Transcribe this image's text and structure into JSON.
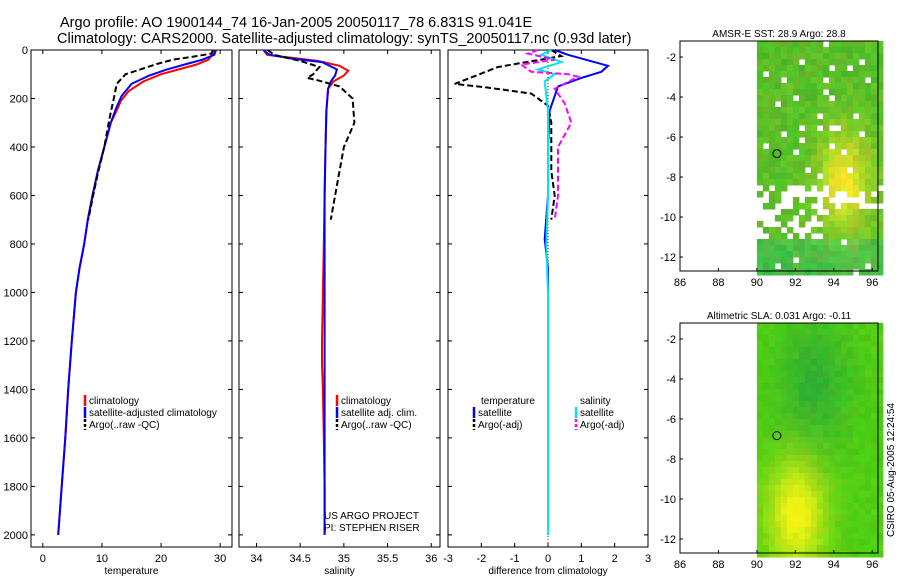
{
  "header": {
    "title_line1": "Argo profile: AO 1900144_74 16-Jan-2005 20050117_78 6.831S 91.041E",
    "title_line2": "Climatology: CARS2000. Satellite-adjusted climatology: synTS_20050117.nc (0.93d later)"
  },
  "colors": {
    "climatology": "#ff0000",
    "satellite": "#0000ff",
    "argo": "#000000",
    "satellite_salinity": "#00e5ee",
    "argo_salinity": "#ff00ff",
    "map_land_missing": "#ffffff"
  },
  "side_label": "CSIRO 05-Aug-2005 12:24:54",
  "chart_data": [
    {
      "id": "temperature",
      "type": "line",
      "xlabel": "temperature",
      "ylabel": "",
      "xlim": [
        -2,
        32
      ],
      "ylim": [
        2050,
        0
      ],
      "xticks": [
        0,
        10,
        20,
        30
      ],
      "yticks": [
        0,
        200,
        400,
        600,
        800,
        1000,
        1200,
        1400,
        1600,
        1800,
        2000
      ],
      "legend": {
        "placement": "lower-right",
        "entries": [
          "climatology",
          "satellite-adjusted climatology",
          "Argo(..raw -QC)"
        ]
      },
      "series": [
        {
          "name": "climatology",
          "color": "climatology",
          "dash": "",
          "points": [
            [
              29.0,
              0
            ],
            [
              28.7,
              20
            ],
            [
              28.0,
              40
            ],
            [
              26.0,
              60
            ],
            [
              23.0,
              80
            ],
            [
              20.0,
              100
            ],
            [
              17.0,
              130
            ],
            [
              14.5,
              170
            ],
            [
              13.2,
              210
            ],
            [
              12.5,
              250
            ],
            [
              11.5,
              300
            ],
            [
              10.4,
              400
            ],
            [
              9.3,
              500
            ],
            [
              8.4,
              600
            ],
            [
              7.6,
              700
            ],
            [
              7.0,
              800
            ],
            [
              6.2,
              900
            ],
            [
              5.6,
              1000
            ],
            [
              4.9,
              1200
            ],
            [
              4.3,
              1400
            ],
            [
              3.8,
              1600
            ],
            [
              3.2,
              1800
            ],
            [
              2.6,
              2000
            ]
          ]
        },
        {
          "name": "satellite-adjusted climatology",
          "color": "satellite",
          "dash": "",
          "points": [
            [
              29.3,
              0
            ],
            [
              29.0,
              20
            ],
            [
              27.0,
              40
            ],
            [
              24.0,
              60
            ],
            [
              21.0,
              80
            ],
            [
              18.0,
              105
            ],
            [
              15.0,
              140
            ],
            [
              13.3,
              190
            ],
            [
              12.4,
              240
            ],
            [
              11.5,
              300
            ],
            [
              10.4,
              400
            ],
            [
              9.3,
              500
            ],
            [
              8.4,
              600
            ],
            [
              7.6,
              700
            ],
            [
              7.0,
              800
            ],
            [
              6.2,
              900
            ],
            [
              5.6,
              1000
            ],
            [
              4.9,
              1200
            ],
            [
              4.3,
              1400
            ],
            [
              3.8,
              1600
            ],
            [
              3.2,
              1800
            ],
            [
              2.6,
              2000
            ]
          ]
        },
        {
          "name": "Argo(..raw -QC)",
          "color": "argo",
          "dash": "6,3",
          "points": [
            [
              28.8,
              0
            ],
            [
              28.5,
              15
            ],
            [
              26.0,
              25
            ],
            [
              22.0,
              40
            ],
            [
              19.0,
              60
            ],
            [
              16.5,
              80
            ],
            [
              14.0,
              100
            ],
            [
              12.5,
              140
            ],
            [
              12.0,
              200
            ],
            [
              11.3,
              280
            ],
            [
              10.4,
              400
            ],
            [
              9.4,
              500
            ],
            [
              8.5,
              600
            ],
            [
              7.7,
              700
            ]
          ]
        }
      ]
    },
    {
      "id": "salinity",
      "type": "line",
      "xlabel": "salinity",
      "ylabel": "",
      "xlim": [
        33.8,
        36.1
      ],
      "ylim": [
        2050,
        0
      ],
      "xticks": [
        34,
        34.5,
        35,
        35.5,
        36
      ],
      "xtick_labels": [
        "34",
        "34.5",
        "35",
        "35.5",
        "36"
      ],
      "yticks": [
        0,
        200,
        400,
        600,
        800,
        1000,
        1200,
        1400,
        1600,
        1800,
        2000
      ],
      "legend": {
        "placement": "lower-right",
        "entries": [
          "climatology",
          "satellite adj. clim.",
          "Argo(..raw -QC)"
        ]
      },
      "annotation": [
        "US ARGO PROJECT",
        "PI: STEPHEN RISER"
      ],
      "series": [
        {
          "name": "climatology",
          "color": "climatology",
          "dash": "",
          "points": [
            [
              34.08,
              0
            ],
            [
              34.12,
              20
            ],
            [
              34.35,
              30
            ],
            [
              34.7,
              45
            ],
            [
              34.95,
              65
            ],
            [
              35.05,
              85
            ],
            [
              35.0,
              105
            ],
            [
              34.88,
              130
            ],
            [
              34.82,
              160
            ],
            [
              34.8,
              250
            ],
            [
              34.79,
              400
            ],
            [
              34.78,
              600
            ],
            [
              34.77,
              800
            ],
            [
              34.76,
              1000
            ],
            [
              34.75,
              1200
            ],
            [
              34.75,
              1300
            ],
            [
              34.76,
              1400
            ],
            [
              34.77,
              1600
            ],
            [
              34.78,
              1800
            ],
            [
              34.78,
              2000
            ]
          ]
        },
        {
          "name": "satellite adj. clim.",
          "color": "satellite",
          "dash": "",
          "points": [
            [
              34.08,
              0
            ],
            [
              34.15,
              20
            ],
            [
              34.4,
              35
            ],
            [
              34.75,
              50
            ],
            [
              34.92,
              80
            ],
            [
              34.9,
              105
            ],
            [
              34.85,
              130
            ],
            [
              34.82,
              160
            ],
            [
              34.8,
              250
            ],
            [
              34.79,
              400
            ],
            [
              34.78,
              600
            ],
            [
              34.78,
              800
            ],
            [
              34.78,
              1000
            ],
            [
              34.78,
              1200
            ],
            [
              34.78,
              1400
            ],
            [
              34.78,
              1600
            ],
            [
              34.78,
              1800
            ],
            [
              34.78,
              2000
            ]
          ]
        },
        {
          "name": "Argo(..raw -QC)",
          "color": "argo",
          "dash": "6,3",
          "points": [
            [
              34.13,
              0
            ],
            [
              34.2,
              20
            ],
            [
              34.5,
              45
            ],
            [
              34.72,
              70
            ],
            [
              34.65,
              100
            ],
            [
              34.58,
              115
            ],
            [
              34.7,
              125
            ],
            [
              34.95,
              150
            ],
            [
              35.1,
              200
            ],
            [
              35.12,
              300
            ],
            [
              35.0,
              400
            ],
            [
              34.95,
              500
            ],
            [
              34.9,
              600
            ],
            [
              34.85,
              700
            ]
          ]
        }
      ]
    },
    {
      "id": "difference",
      "type": "line",
      "xlabel": "difference from climatology",
      "ylabel": "",
      "xlim": [
        -3,
        3
      ],
      "ylim": [
        2050,
        0
      ],
      "xticks": [
        -3,
        -2,
        -1,
        0,
        1,
        2,
        3
      ],
      "yticks": [
        0,
        200,
        400,
        600,
        800,
        1000,
        1200,
        1400,
        1600,
        1800,
        2000
      ],
      "legend": {
        "placement": "lower",
        "entries": [
          "temperature",
          "satellite",
          "Argo(-adj)",
          "salinity",
          "satellite",
          "Argo(-adj)"
        ]
      },
      "series": [
        {
          "name": "satellite",
          "group": "temperature",
          "color": "satellite",
          "dash": "",
          "points": [
            [
              0.2,
              0
            ],
            [
              0.6,
              20
            ],
            [
              1.8,
              65
            ],
            [
              1.6,
              90
            ],
            [
              1.0,
              115
            ],
            [
              0.3,
              150
            ],
            [
              0.05,
              250
            ],
            [
              0.0,
              400
            ],
            [
              0.0,
              600
            ],
            [
              -0.1,
              780
            ],
            [
              0.0,
              900
            ],
            [
              0.0,
              1200
            ],
            [
              0.0,
              1600
            ],
            [
              0.0,
              2000
            ]
          ]
        },
        {
          "name": "Argo(-adj)",
          "group": "temperature",
          "color": "argo",
          "dash": "6,3",
          "points": [
            [
              0.1,
              0
            ],
            [
              0.4,
              25
            ],
            [
              -1.5,
              70
            ],
            [
              -2.8,
              140
            ],
            [
              -1.8,
              155
            ],
            [
              -0.5,
              180
            ],
            [
              0.0,
              230
            ],
            [
              0.1,
              300
            ],
            [
              0.1,
              400
            ],
            [
              0.1,
              500
            ],
            [
              0.2,
              600
            ],
            [
              0.1,
              700
            ]
          ]
        },
        {
          "name": "satellite",
          "group": "salinity",
          "color": "satellite_salinity",
          "dash": "",
          "points": [
            [
              0.1,
              0
            ],
            [
              -0.2,
              20
            ],
            [
              0.4,
              50
            ],
            [
              -0.3,
              80
            ],
            [
              0.2,
              100
            ],
            [
              -0.1,
              130
            ],
            [
              0.0,
              250
            ],
            [
              0.0,
              400
            ],
            [
              0.0,
              600
            ],
            [
              -0.05,
              800
            ],
            [
              0.0,
              1000
            ],
            [
              0.0,
              1400
            ],
            [
              0.0,
              2000
            ]
          ]
        },
        {
          "name": "Argo(-adj)",
          "group": "salinity",
          "color": "argo_salinity",
          "dash": "6,3",
          "points": [
            [
              -0.3,
              0
            ],
            [
              -0.6,
              15
            ],
            [
              0.2,
              40
            ],
            [
              -0.8,
              60
            ],
            [
              -0.5,
              90
            ],
            [
              0.6,
              100
            ],
            [
              0.9,
              110
            ],
            [
              0.2,
              160
            ],
            [
              0.5,
              220
            ],
            [
              0.7,
              300
            ],
            [
              0.3,
              400
            ],
            [
              0.3,
              500
            ],
            [
              0.3,
              600
            ],
            [
              0.2,
              700
            ]
          ]
        }
      ]
    },
    {
      "id": "sst_map",
      "type": "heatmap",
      "title": "AMSR-E SST: 28.9 Argo: 28.8",
      "xlim": [
        86,
        96.3
      ],
      "ylim": [
        -12.7,
        -1.2
      ],
      "xticks": [
        86,
        88,
        90,
        92,
        94,
        96
      ],
      "yticks": [
        -2,
        -4,
        -6,
        -8,
        -10,
        -12
      ],
      "data_extent": {
        "lon": [
          90,
          96.3
        ],
        "lat": [
          -12.7,
          -1.2
        ]
      },
      "marker": {
        "lon": 91.04,
        "lat": -6.83
      }
    },
    {
      "id": "sla_map",
      "type": "heatmap",
      "title": "Altimetric SLA: 0.031 Argo: -0.11",
      "xlim": [
        86,
        96.3
      ],
      "ylim": [
        -12.7,
        -1.2
      ],
      "xticks": [
        86,
        88,
        90,
        92,
        94,
        96
      ],
      "yticks": [
        -2,
        -4,
        -6,
        -8,
        -10,
        -12
      ],
      "data_extent": {
        "lon": [
          90,
          96.3
        ],
        "lat": [
          -12.7,
          -1.2
        ]
      },
      "marker": {
        "lon": 91.04,
        "lat": -6.83
      }
    }
  ]
}
